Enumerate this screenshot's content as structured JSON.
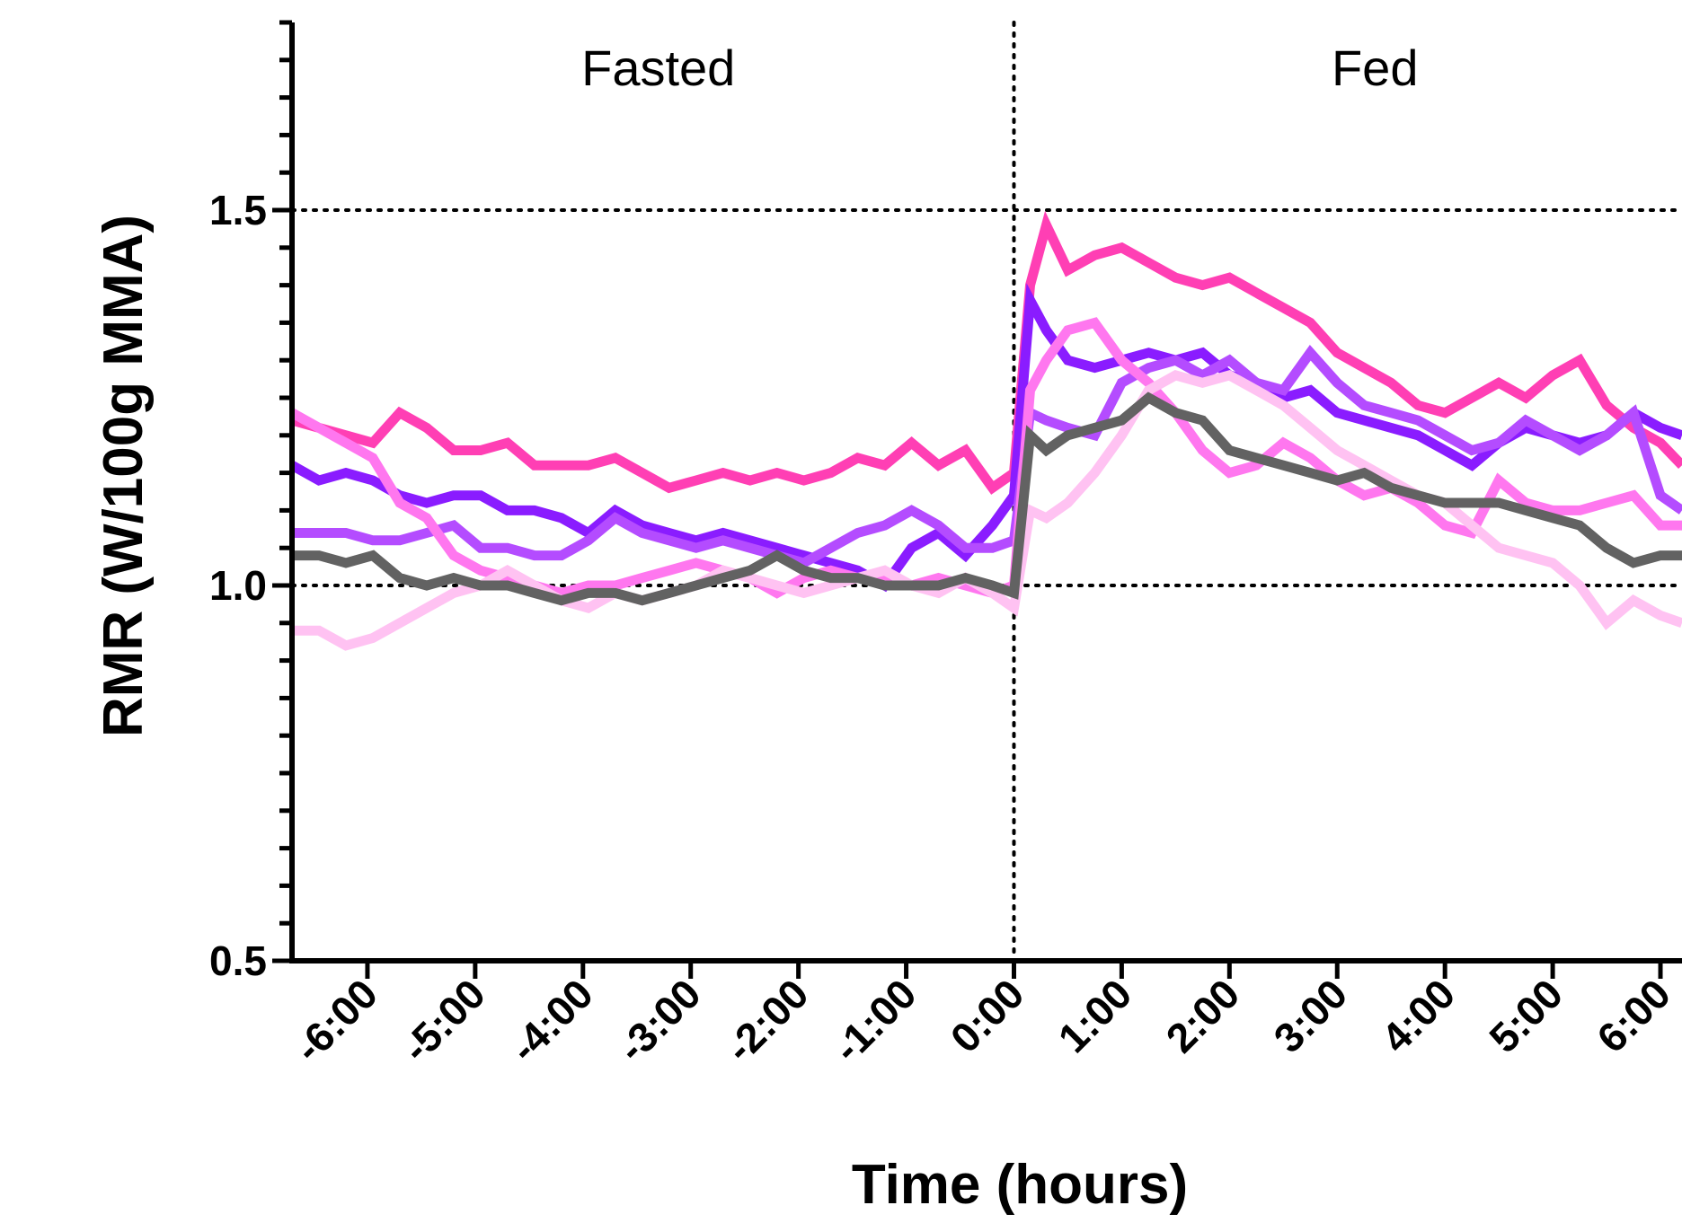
{
  "chart_data": {
    "type": "line",
    "xlabel": "Time (hours)",
    "ylabel": "RMR (W/100g MMA)",
    "xlim": [
      -6.7,
      6.2
    ],
    "ylim": [
      0.5,
      1.75
    ],
    "y_ticks": [
      {
        "value": 0.5,
        "label": "0.5"
      },
      {
        "value": 1.0,
        "label": "1.0"
      },
      {
        "value": 1.5,
        "label": "1.5"
      }
    ],
    "x_ticks": [
      {
        "value": -6,
        "label": "-6:00"
      },
      {
        "value": -5,
        "label": "-5:00"
      },
      {
        "value": -4,
        "label": "-4:00"
      },
      {
        "value": -3,
        "label": "-3:00"
      },
      {
        "value": -2,
        "label": "-2:00"
      },
      {
        "value": -1,
        "label": "-1:00"
      },
      {
        "value": 0,
        "label": "0:00"
      },
      {
        "value": 1,
        "label": "1:00"
      },
      {
        "value": 2,
        "label": "2:00"
      },
      {
        "value": 3,
        "label": "3:00"
      },
      {
        "value": 4,
        "label": "4:00"
      },
      {
        "value": 5,
        "label": "5:00"
      },
      {
        "value": 6,
        "label": "6:00"
      }
    ],
    "reference_lines": {
      "horizontal": [
        1.0,
        1.5
      ],
      "vertical": [
        0
      ]
    },
    "annotations": [
      {
        "text": "Fasted",
        "x": -3.3,
        "y": 1.69
      },
      {
        "text": "Fed",
        "x": 3.35,
        "y": 1.69
      }
    ],
    "grid": false,
    "legend": "none",
    "series": [
      {
        "color": "#ff3fb4",
        "x": [
          -6.7,
          -6.45,
          -6.2,
          -5.95,
          -5.7,
          -5.45,
          -5.2,
          -4.95,
          -4.7,
          -4.45,
          -4.2,
          -3.95,
          -3.7,
          -3.45,
          -3.2,
          -2.95,
          -2.7,
          -2.45,
          -2.2,
          -1.95,
          -1.7,
          -1.45,
          -1.2,
          -0.95,
          -0.7,
          -0.45,
          -0.2,
          0.0,
          0.15,
          0.3,
          0.5,
          0.75,
          1.0,
          1.25,
          1.5,
          1.75,
          2.0,
          2.25,
          2.5,
          2.75,
          3.0,
          3.25,
          3.5,
          3.75,
          4.0,
          4.25,
          4.5,
          4.75,
          5.0,
          5.25,
          5.5,
          5.75,
          6.0,
          6.2
        ],
        "y": [
          1.22,
          1.21,
          1.2,
          1.19,
          1.23,
          1.21,
          1.18,
          1.18,
          1.19,
          1.16,
          1.16,
          1.16,
          1.17,
          1.15,
          1.13,
          1.14,
          1.15,
          1.14,
          1.15,
          1.14,
          1.15,
          1.17,
          1.16,
          1.19,
          1.16,
          1.18,
          1.13,
          1.15,
          1.4,
          1.48,
          1.42,
          1.44,
          1.45,
          1.43,
          1.41,
          1.4,
          1.41,
          1.39,
          1.37,
          1.35,
          1.31,
          1.29,
          1.27,
          1.24,
          1.23,
          1.25,
          1.27,
          1.25,
          1.28,
          1.3,
          1.24,
          1.21,
          1.19,
          1.16
        ]
      },
      {
        "color": "#8a1cff",
        "x": [
          -6.7,
          -6.45,
          -6.2,
          -5.95,
          -5.7,
          -5.45,
          -5.2,
          -4.95,
          -4.7,
          -4.45,
          -4.2,
          -3.95,
          -3.7,
          -3.45,
          -3.2,
          -2.95,
          -2.7,
          -2.45,
          -2.2,
          -1.95,
          -1.7,
          -1.45,
          -1.2,
          -0.95,
          -0.7,
          -0.45,
          -0.2,
          0.0,
          0.15,
          0.3,
          0.5,
          0.75,
          1.0,
          1.25,
          1.5,
          1.75,
          2.0,
          2.25,
          2.5,
          2.75,
          3.0,
          3.25,
          3.5,
          3.75,
          4.0,
          4.25,
          4.5,
          4.75,
          5.0,
          5.25,
          5.5,
          5.75,
          6.0,
          6.2
        ],
        "y": [
          1.16,
          1.14,
          1.15,
          1.14,
          1.12,
          1.11,
          1.12,
          1.12,
          1.1,
          1.1,
          1.09,
          1.07,
          1.1,
          1.08,
          1.07,
          1.06,
          1.07,
          1.06,
          1.05,
          1.04,
          1.03,
          1.02,
          1.0,
          1.05,
          1.07,
          1.04,
          1.08,
          1.12,
          1.38,
          1.34,
          1.3,
          1.29,
          1.3,
          1.31,
          1.3,
          1.31,
          1.28,
          1.27,
          1.25,
          1.26,
          1.23,
          1.22,
          1.21,
          1.2,
          1.18,
          1.16,
          1.19,
          1.21,
          1.2,
          1.19,
          1.2,
          1.23,
          1.21,
          1.2
        ]
      },
      {
        "color": "#b44cff",
        "x": [
          -6.7,
          -6.45,
          -6.2,
          -5.95,
          -5.7,
          -5.45,
          -5.2,
          -4.95,
          -4.7,
          -4.45,
          -4.2,
          -3.95,
          -3.7,
          -3.45,
          -3.2,
          -2.95,
          -2.7,
          -2.45,
          -2.2,
          -1.95,
          -1.7,
          -1.45,
          -1.2,
          -0.95,
          -0.7,
          -0.45,
          -0.2,
          0.0,
          0.15,
          0.3,
          0.5,
          0.75,
          1.0,
          1.25,
          1.5,
          1.75,
          2.0,
          2.25,
          2.5,
          2.75,
          3.0,
          3.25,
          3.5,
          3.75,
          4.0,
          4.25,
          4.5,
          4.75,
          5.0,
          5.25,
          5.5,
          5.75,
          6.0,
          6.2
        ],
        "y": [
          1.07,
          1.07,
          1.07,
          1.06,
          1.06,
          1.07,
          1.08,
          1.05,
          1.05,
          1.04,
          1.04,
          1.06,
          1.09,
          1.07,
          1.06,
          1.05,
          1.06,
          1.05,
          1.04,
          1.03,
          1.05,
          1.07,
          1.08,
          1.1,
          1.08,
          1.05,
          1.05,
          1.06,
          1.23,
          1.22,
          1.21,
          1.2,
          1.27,
          1.29,
          1.3,
          1.28,
          1.3,
          1.27,
          1.26,
          1.31,
          1.27,
          1.24,
          1.23,
          1.22,
          1.2,
          1.18,
          1.19,
          1.22,
          1.2,
          1.18,
          1.2,
          1.23,
          1.12,
          1.1
        ]
      },
      {
        "color": "#ff77ef",
        "x": [
          -6.7,
          -6.45,
          -6.2,
          -5.95,
          -5.7,
          -5.45,
          -5.2,
          -4.95,
          -4.7,
          -4.45,
          -4.2,
          -3.95,
          -3.7,
          -3.45,
          -3.2,
          -2.95,
          -2.7,
          -2.45,
          -2.2,
          -1.95,
          -1.7,
          -1.45,
          -1.2,
          -0.95,
          -0.7,
          -0.45,
          -0.2,
          0.0,
          0.15,
          0.3,
          0.5,
          0.75,
          1.0,
          1.25,
          1.5,
          1.75,
          2.0,
          2.25,
          2.5,
          2.75,
          3.0,
          3.25,
          3.5,
          3.75,
          4.0,
          4.25,
          4.5,
          4.75,
          5.0,
          5.25,
          5.5,
          5.75,
          6.0,
          6.2
        ],
        "y": [
          1.23,
          1.21,
          1.19,
          1.17,
          1.11,
          1.09,
          1.04,
          1.02,
          1.01,
          1.0,
          0.99,
          1.0,
          1.0,
          1.01,
          1.02,
          1.03,
          1.02,
          1.01,
          0.99,
          1.01,
          1.02,
          1.01,
          1.01,
          1.0,
          1.01,
          1.0,
          0.99,
          1.0,
          1.26,
          1.3,
          1.34,
          1.35,
          1.3,
          1.27,
          1.23,
          1.18,
          1.15,
          1.16,
          1.19,
          1.17,
          1.14,
          1.12,
          1.13,
          1.11,
          1.08,
          1.07,
          1.14,
          1.11,
          1.1,
          1.1,
          1.11,
          1.12,
          1.08,
          1.08
        ]
      },
      {
        "color": "#ffc2f2",
        "x": [
          -6.7,
          -6.45,
          -6.2,
          -5.95,
          -5.7,
          -5.45,
          -5.2,
          -4.95,
          -4.7,
          -4.45,
          -4.2,
          -3.95,
          -3.7,
          -3.45,
          -3.2,
          -2.95,
          -2.7,
          -2.45,
          -2.2,
          -1.95,
          -1.7,
          -1.45,
          -1.2,
          -0.95,
          -0.7,
          -0.45,
          -0.2,
          0.0,
          0.15,
          0.3,
          0.5,
          0.75,
          1.0,
          1.25,
          1.5,
          1.75,
          2.0,
          2.25,
          2.5,
          2.75,
          3.0,
          3.25,
          3.5,
          3.75,
          4.0,
          4.25,
          4.5,
          4.75,
          5.0,
          5.25,
          5.5,
          5.75,
          6.0,
          6.2
        ],
        "y": [
          0.94,
          0.94,
          0.92,
          0.93,
          0.95,
          0.97,
          0.99,
          1.0,
          1.02,
          1.0,
          0.98,
          0.97,
          0.99,
          0.98,
          0.99,
          1.0,
          1.02,
          1.01,
          1.0,
          0.99,
          1.0,
          1.01,
          1.02,
          1.0,
          0.99,
          1.01,
          0.99,
          0.97,
          1.1,
          1.09,
          1.11,
          1.15,
          1.2,
          1.26,
          1.28,
          1.27,
          1.28,
          1.26,
          1.24,
          1.21,
          1.18,
          1.16,
          1.14,
          1.12,
          1.11,
          1.08,
          1.05,
          1.04,
          1.03,
          1.0,
          0.95,
          0.98,
          0.96,
          0.95
        ]
      },
      {
        "color": "#626262",
        "x": [
          -6.7,
          -6.45,
          -6.2,
          -5.95,
          -5.7,
          -5.45,
          -5.2,
          -4.95,
          -4.7,
          -4.45,
          -4.2,
          -3.95,
          -3.7,
          -3.45,
          -3.2,
          -2.95,
          -2.7,
          -2.45,
          -2.2,
          -1.95,
          -1.7,
          -1.45,
          -1.2,
          -0.95,
          -0.7,
          -0.45,
          -0.2,
          0.0,
          0.15,
          0.3,
          0.5,
          0.75,
          1.0,
          1.25,
          1.5,
          1.75,
          2.0,
          2.25,
          2.5,
          2.75,
          3.0,
          3.25,
          3.5,
          3.75,
          4.0,
          4.25,
          4.5,
          4.75,
          5.0,
          5.25,
          5.5,
          5.75,
          6.0,
          6.2
        ],
        "y": [
          1.04,
          1.04,
          1.03,
          1.04,
          1.01,
          1.0,
          1.01,
          1.0,
          1.0,
          0.99,
          0.98,
          0.99,
          0.99,
          0.98,
          0.99,
          1.0,
          1.01,
          1.02,
          1.04,
          1.02,
          1.01,
          1.01,
          1.0,
          1.0,
          1.0,
          1.01,
          1.0,
          0.99,
          1.2,
          1.18,
          1.2,
          1.21,
          1.22,
          1.25,
          1.23,
          1.22,
          1.18,
          1.17,
          1.16,
          1.15,
          1.14,
          1.15,
          1.13,
          1.12,
          1.11,
          1.11,
          1.11,
          1.1,
          1.09,
          1.08,
          1.05,
          1.03,
          1.04,
          1.04
        ]
      }
    ]
  }
}
